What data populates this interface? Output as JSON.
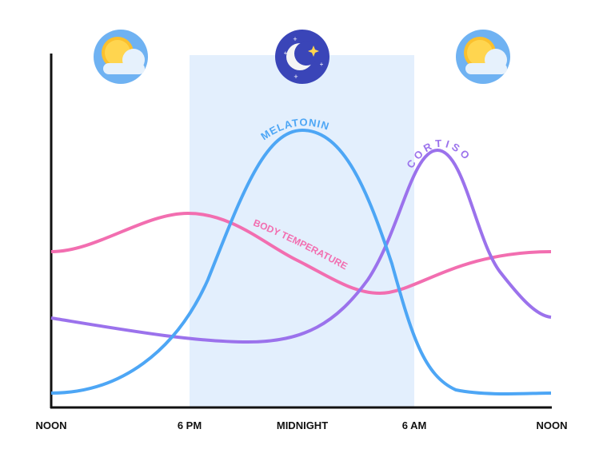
{
  "chart_data": {
    "type": "line",
    "title": "",
    "x_tick_labels": [
      "NOON",
      "6 PM",
      "MIDNIGHT",
      "6 AM",
      "NOON"
    ],
    "series": [
      {
        "name": "MELATONIN",
        "color": "#4da6f5"
      },
      {
        "name": "CORTISOL",
        "color": "#9b72ec"
      },
      {
        "name": "BODY TEMPERATURE",
        "color": "#f26eb0"
      }
    ],
    "night_band": {
      "from": "6 PM",
      "to": "6 AM",
      "color": "#e3effd"
    },
    "icons": [
      "sun-cloud-icon",
      "moon-stars-icon",
      "sun-cloud-icon"
    ],
    "grid": false
  }
}
